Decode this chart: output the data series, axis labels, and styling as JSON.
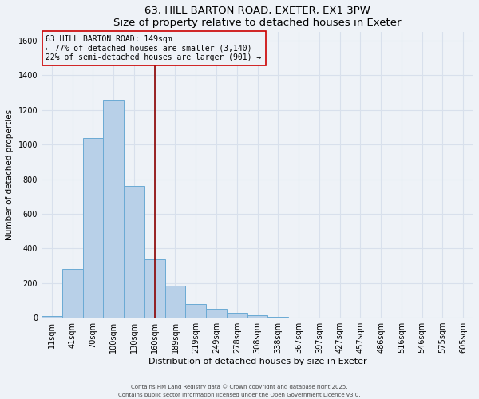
{
  "title": "63, HILL BARTON ROAD, EXETER, EX1 3PW",
  "subtitle": "Size of property relative to detached houses in Exeter",
  "xlabel": "Distribution of detached houses by size in Exeter",
  "ylabel": "Number of detached properties",
  "bar_labels": [
    "11sqm",
    "41sqm",
    "70sqm",
    "100sqm",
    "130sqm",
    "160sqm",
    "189sqm",
    "219sqm",
    "249sqm",
    "278sqm",
    "308sqm",
    "338sqm",
    "367sqm",
    "397sqm",
    "427sqm",
    "457sqm",
    "486sqm",
    "516sqm",
    "546sqm",
    "575sqm",
    "605sqm"
  ],
  "bar_values": [
    10,
    280,
    1040,
    1260,
    760,
    335,
    185,
    80,
    50,
    28,
    15,
    5,
    2,
    0,
    0,
    0,
    0,
    0,
    0,
    0,
    0
  ],
  "bar_color": "#b8d0e8",
  "bar_edgecolor": "#6aaad4",
  "vline_color": "#8b0000",
  "vline_x": 5.0,
  "ylim": [
    0,
    1650
  ],
  "yticks": [
    0,
    200,
    400,
    600,
    800,
    1000,
    1200,
    1400,
    1600
  ],
  "annotation_title": "63 HILL BARTON ROAD: 149sqm",
  "annotation_line2": "← 77% of detached houses are smaller (3,140)",
  "annotation_line3": "22% of semi-detached houses are larger (901) →",
  "bg_color": "#eef2f7",
  "grid_color": "#d8e0ec",
  "footer_line1": "Contains HM Land Registry data © Crown copyright and database right 2025.",
  "footer_line2": "Contains public sector information licensed under the Open Government Licence v3.0."
}
